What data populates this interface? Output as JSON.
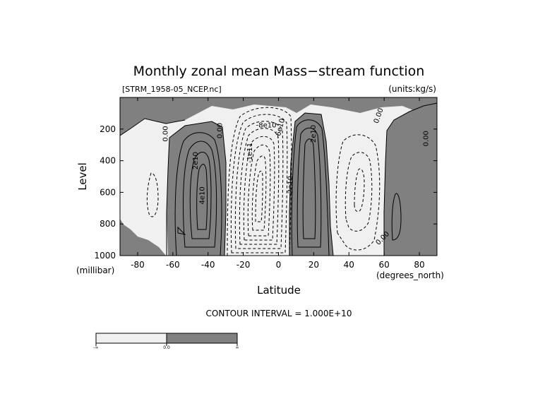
{
  "chart_data": {
    "type": "contour",
    "title": "Monthly zonal mean Mass−stream function",
    "file_label": "[STRM_1958-05_NCEP.nc]",
    "units_label": "(units:kg/s)",
    "xlabel": "Latitude",
    "x_unit_label": "(degrees_north)",
    "ylabel": "Level",
    "y_unit_label": "(millibar)",
    "xlim": [
      -90,
      90
    ],
    "ylim": [
      1000,
      0
    ],
    "x_ticks": [
      -80,
      -60,
      -40,
      -20,
      0,
      20,
      40,
      60,
      80
    ],
    "y_ticks": [
      200,
      400,
      600,
      800,
      1000
    ],
    "contour_interval_text": "CONTOUR INTERVAL = 1.000E+10",
    "fill_colors": {
      "negative": "#f0f0f0",
      "positive": "#808080"
    },
    "colorbar": {
      "labels": [
        "-∞",
        "0.0",
        "∞"
      ]
    },
    "contour_labels": [
      {
        "text": "0.00",
        "lat": -63,
        "lev": 230,
        "rotate": -90
      },
      {
        "text": "0.00",
        "lat": -32,
        "lev": 210,
        "rotate": -90
      },
      {
        "text": "2e10",
        "lat": -46,
        "lev": 400,
        "rotate": -90
      },
      {
        "text": "4e10",
        "lat": -42,
        "lev": 620,
        "rotate": -90
      },
      {
        "text": "-8e10",
        "lat": -7,
        "lev": 190,
        "rotate": 0
      },
      {
        "text": "-1e11",
        "lat": -15,
        "lev": 350,
        "rotate": -90
      },
      {
        "text": "-6e10",
        "lat": 2,
        "lev": 200,
        "rotate": -75
      },
      {
        "text": "-2e10",
        "lat": 8,
        "lev": 560,
        "rotate": -90
      },
      {
        "text": "2e10",
        "lat": 21,
        "lev": 230,
        "rotate": -90
      },
      {
        "text": "0.00",
        "lat": 58,
        "lev": 120,
        "rotate": -70
      },
      {
        "text": "0.00",
        "lat": 60,
        "lev": 900,
        "rotate": -45
      },
      {
        "text": "0.00",
        "lat": 85,
        "lev": 260,
        "rotate": -90
      }
    ]
  }
}
